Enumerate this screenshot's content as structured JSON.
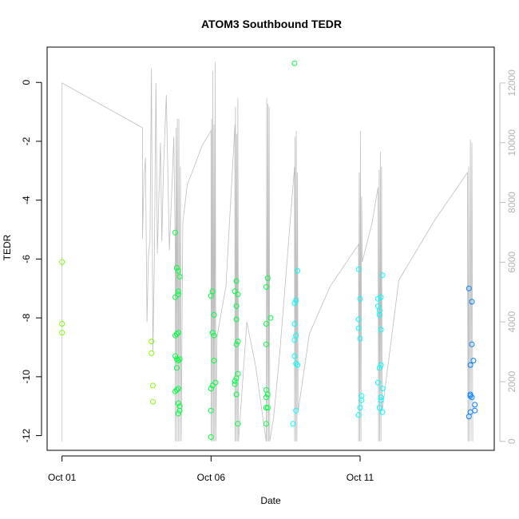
{
  "chart_data": {
    "type": "scatter",
    "title": "ATOM3 Southbound TEDR",
    "xlabel": "Date",
    "ylabel": "TEDR",
    "x_ticks": [
      {
        "label": "Oct 01",
        "day": 1
      },
      {
        "label": "Oct 06",
        "day": 6
      },
      {
        "label": "Oct 11",
        "day": 11
      }
    ],
    "xlim_days": [
      0.5,
      15.5
    ],
    "ylim": [
      -12.5,
      1.2
    ],
    "y_ticks": [
      0,
      -2,
      -4,
      -6,
      -8,
      -10,
      -12
    ],
    "y_right_lim": [
      -300,
      13200
    ],
    "y_right_ticks": [
      0,
      2000,
      4000,
      6000,
      8000,
      10000,
      12000
    ],
    "grid": false,
    "colors": {
      "early": "#7fff00",
      "mid": "#00ff40",
      "late": "#00ffff",
      "end": "#0080ff",
      "right_series": "#bebebe"
    },
    "series": [
      {
        "color": "early",
        "points": [
          [
            1.0,
            -6.1
          ],
          [
            1.0,
            -8.2
          ],
          [
            1.0,
            -8.5
          ],
          [
            4.0,
            -8.8
          ],
          [
            4.0,
            -9.2
          ],
          [
            4.05,
            -10.3
          ],
          [
            4.05,
            -10.85
          ]
        ]
      },
      {
        "color": "mid",
        "points": [
          [
            4.8,
            -5.1
          ],
          [
            4.8,
            -7.3
          ],
          [
            4.85,
            -6.3
          ],
          [
            4.9,
            -6.4
          ],
          [
            4.95,
            -6.6
          ],
          [
            4.9,
            -7.1
          ],
          [
            4.9,
            -7.2
          ],
          [
            4.8,
            -8.6
          ],
          [
            4.85,
            -8.55
          ],
          [
            4.9,
            -8.5
          ],
          [
            4.8,
            -9.3
          ],
          [
            4.85,
            -9.4
          ],
          [
            4.9,
            -9.45
          ],
          [
            4.95,
            -9.4
          ],
          [
            4.85,
            -9.7
          ],
          [
            4.8,
            -10.5
          ],
          [
            4.85,
            -10.45
          ],
          [
            4.9,
            -10.4
          ],
          [
            4.9,
            -10.9
          ],
          [
            4.95,
            -11.0
          ],
          [
            4.95,
            -11.15
          ],
          [
            4.9,
            -11.25
          ],
          [
            6.0,
            -7.25
          ],
          [
            6.05,
            -7.1
          ],
          [
            6.1,
            -7.9
          ],
          [
            6.05,
            -8.5
          ],
          [
            6.1,
            -8.6
          ],
          [
            6.1,
            -9.45
          ],
          [
            6.15,
            -10.2
          ],
          [
            6.05,
            -10.3
          ],
          [
            6.0,
            -10.4
          ],
          [
            6.0,
            -11.15
          ],
          [
            6.0,
            -12.05
          ],
          [
            6.8,
            -7.1
          ],
          [
            6.85,
            -6.75
          ],
          [
            6.9,
            -7.2
          ],
          [
            6.85,
            -7.6
          ],
          [
            6.85,
            -8.05
          ],
          [
            6.9,
            -8.8
          ],
          [
            6.85,
            -8.9
          ],
          [
            6.9,
            -9.9
          ],
          [
            6.85,
            -10.05
          ],
          [
            6.8,
            -10.15
          ],
          [
            6.8,
            -10.25
          ],
          [
            6.85,
            -10.6
          ],
          [
            6.9,
            -11.6
          ],
          [
            7.9,
            -6.65
          ],
          [
            7.85,
            -6.95
          ],
          [
            7.85,
            -8.2
          ],
          [
            8.0,
            -8.0
          ],
          [
            7.85,
            -8.9
          ],
          [
            7.85,
            -10.45
          ],
          [
            7.9,
            -10.6
          ],
          [
            7.85,
            -10.7
          ],
          [
            7.9,
            -11.05
          ],
          [
            7.85,
            -11.05
          ],
          [
            7.85,
            -11.6
          ],
          [
            8.8,
            0.65
          ]
        ]
      },
      {
        "color": "late",
        "points": [
          [
            8.9,
            -6.4
          ],
          [
            8.85,
            -7.4
          ],
          [
            8.8,
            -7.5
          ],
          [
            8.8,
            -8.2
          ],
          [
            8.85,
            -8.6
          ],
          [
            8.8,
            -8.75
          ],
          [
            8.8,
            -9.3
          ],
          [
            8.85,
            -9.55
          ],
          [
            8.9,
            -9.6
          ],
          [
            8.85,
            -11.15
          ],
          [
            8.75,
            -11.6
          ],
          [
            10.95,
            -6.35
          ],
          [
            11.0,
            -7.35
          ],
          [
            10.95,
            -8.05
          ],
          [
            10.95,
            -8.35
          ],
          [
            11.0,
            -8.7
          ],
          [
            11.05,
            -10.65
          ],
          [
            11.05,
            -10.8
          ],
          [
            11.0,
            -11.05
          ],
          [
            10.95,
            -11.3
          ],
          [
            11.6,
            -7.35
          ],
          [
            11.7,
            -7.3
          ],
          [
            11.75,
            -6.55
          ],
          [
            11.6,
            -7.6
          ],
          [
            11.65,
            -7.75
          ],
          [
            11.65,
            -7.9
          ],
          [
            11.7,
            -8.4
          ],
          [
            11.7,
            -9.6
          ],
          [
            11.65,
            -9.7
          ],
          [
            11.6,
            -10.2
          ],
          [
            11.75,
            -10.4
          ],
          [
            11.7,
            -10.7
          ],
          [
            11.7,
            -10.8
          ],
          [
            11.65,
            -11.05
          ],
          [
            11.75,
            -11.2
          ]
        ]
      },
      {
        "color": "end",
        "points": [
          [
            14.65,
            -7.0
          ],
          [
            14.75,
            -7.45
          ],
          [
            14.75,
            -8.9
          ],
          [
            14.8,
            -9.45
          ],
          [
            14.7,
            -9.6
          ],
          [
            14.7,
            -10.6
          ],
          [
            14.7,
            -10.65
          ],
          [
            14.75,
            -10.7
          ],
          [
            14.85,
            -10.95
          ],
          [
            14.85,
            -11.15
          ],
          [
            14.7,
            -11.2
          ],
          [
            14.65,
            -11.35
          ]
        ]
      }
    ],
    "right_series": {
      "points": [
        [
          1.0,
          0
        ],
        [
          1.0,
          12000
        ],
        [
          3.7,
          10500
        ],
        [
          3.7,
          6800
        ],
        [
          3.75,
          8800
        ],
        [
          3.8,
          9500
        ],
        [
          3.85,
          4000
        ],
        [
          3.9,
          6200
        ],
        [
          3.95,
          6700
        ],
        [
          4.0,
          12500
        ],
        [
          4.05,
          3000
        ],
        [
          4.1,
          6200
        ],
        [
          4.15,
          12000
        ],
        [
          4.2,
          6300
        ],
        [
          4.3,
          10000
        ],
        [
          4.35,
          6700
        ],
        [
          4.4,
          9000
        ],
        [
          4.5,
          11600
        ],
        [
          4.6,
          6400
        ],
        [
          4.7,
          8800
        ],
        [
          4.75,
          10200
        ],
        [
          4.8,
          6400
        ],
        [
          4.8,
          0
        ],
        [
          4.83,
          10500
        ],
        [
          4.85,
          0
        ],
        [
          4.87,
          10800
        ],
        [
          4.9,
          0
        ],
        [
          4.92,
          10800
        ],
        [
          4.95,
          0
        ],
        [
          4.97,
          9200
        ],
        [
          5.0,
          0
        ],
        [
          5.05,
          7300
        ],
        [
          5.2,
          8600
        ],
        [
          5.4,
          9100
        ],
        [
          5.7,
          9900
        ],
        [
          6.0,
          10400
        ],
        [
          6.0,
          0
        ],
        [
          6.02,
          10800
        ],
        [
          6.04,
          0
        ],
        [
          6.06,
          12400
        ],
        [
          6.08,
          0
        ],
        [
          6.1,
          10600
        ],
        [
          6.12,
          0
        ],
        [
          6.14,
          12700
        ],
        [
          6.16,
          0
        ],
        [
          6.2,
          3500
        ],
        [
          6.5,
          5200
        ],
        [
          6.8,
          10600
        ],
        [
          6.8,
          0
        ],
        [
          6.82,
          11200
        ],
        [
          6.84,
          0
        ],
        [
          6.86,
          10300
        ],
        [
          6.88,
          0
        ],
        [
          6.9,
          11500
        ],
        [
          6.92,
          0
        ],
        [
          7.2,
          4000
        ],
        [
          7.5,
          2500
        ],
        [
          7.85,
          0
        ],
        [
          7.87,
          11500
        ],
        [
          7.89,
          0
        ],
        [
          7.91,
          11300
        ],
        [
          7.93,
          0
        ],
        [
          7.95,
          11200
        ],
        [
          7.97,
          0
        ],
        [
          8.1,
          800
        ],
        [
          8.3,
          2900
        ],
        [
          8.8,
          9200
        ],
        [
          8.8,
          0
        ],
        [
          8.82,
          10200
        ],
        [
          8.84,
          0
        ],
        [
          8.86,
          10400
        ],
        [
          8.88,
          0
        ],
        [
          8.9,
          9000
        ],
        [
          8.92,
          1000
        ],
        [
          9.3,
          3600
        ],
        [
          10.0,
          5200
        ],
        [
          10.95,
          6600
        ],
        [
          10.95,
          0
        ],
        [
          10.97,
          9000
        ],
        [
          10.99,
          0
        ],
        [
          11.01,
          10400
        ],
        [
          11.03,
          0
        ],
        [
          11.05,
          8200
        ],
        [
          11.07,
          6000
        ],
        [
          11.4,
          7300
        ],
        [
          11.6,
          8500
        ],
        [
          11.62,
          0
        ],
        [
          11.64,
          9100
        ],
        [
          11.66,
          0
        ],
        [
          11.68,
          9700
        ],
        [
          11.7,
          0
        ],
        [
          11.72,
          9200
        ],
        [
          11.74,
          1000
        ],
        [
          12.3,
          5400
        ],
        [
          13.5,
          7400
        ],
        [
          14.6,
          9000
        ],
        [
          14.62,
          0
        ],
        [
          14.64,
          9200
        ],
        [
          14.66,
          0
        ],
        [
          14.7,
          10100
        ],
        [
          14.72,
          0
        ],
        [
          14.75,
          10000
        ],
        [
          14.78,
          0
        ]
      ]
    }
  }
}
